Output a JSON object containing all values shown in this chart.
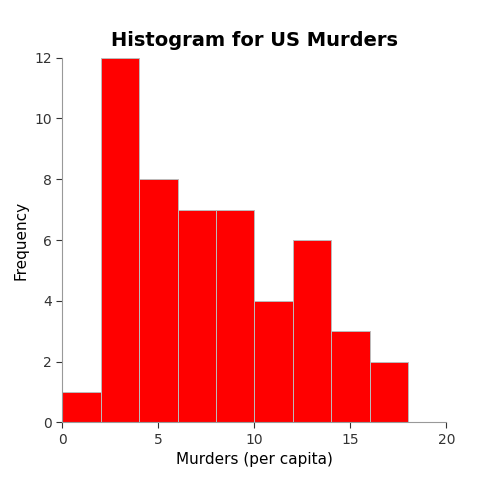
{
  "title": "Histogram for US Murders",
  "xlabel": "Murders (per capita)",
  "ylabel": "Frequency",
  "bar_color": "#FF0000",
  "edge_color": "#BBBBBB",
  "bin_edges": [
    0,
    2,
    4,
    6,
    8,
    10,
    12,
    14,
    16,
    18
  ],
  "frequencies": [
    1,
    12,
    8,
    7,
    7,
    4,
    6,
    3,
    2
  ],
  "xlim": [
    0,
    20
  ],
  "ylim": [
    0,
    12
  ],
  "yticks": [
    0,
    2,
    4,
    6,
    8,
    10,
    12
  ],
  "xticks": [
    0,
    5,
    10,
    15,
    20
  ],
  "title_fontsize": 14,
  "label_fontsize": 11,
  "tick_fontsize": 10,
  "background_color": "#FFFFFF",
  "title_fontweight": "bold"
}
